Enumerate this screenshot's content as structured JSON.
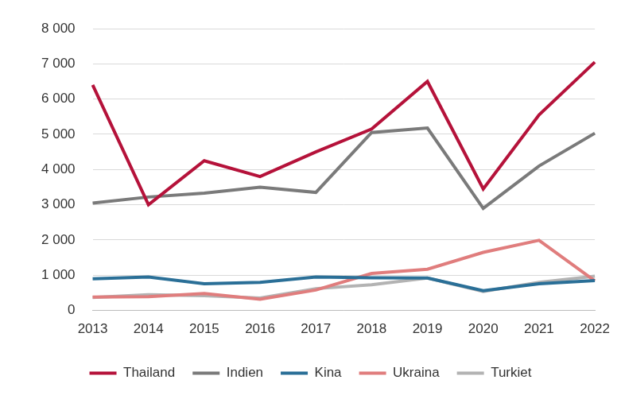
{
  "chart_data": {
    "type": "line",
    "categories": [
      "2013",
      "2014",
      "2015",
      "2016",
      "2017",
      "2018",
      "2019",
      "2020",
      "2021",
      "2022"
    ],
    "series": [
      {
        "name": "Thailand",
        "color": "#b5123a",
        "values": [
          6400,
          3000,
          4250,
          3800,
          4500,
          5150,
          6500,
          3450,
          5550,
          7050
        ]
      },
      {
        "name": "Indien",
        "color": "#7a7a7a",
        "values": [
          3050,
          3220,
          3330,
          3500,
          3350,
          5050,
          5180,
          2900,
          4100,
          5030
        ]
      },
      {
        "name": "Kina",
        "color": "#2a6f97",
        "values": [
          900,
          950,
          760,
          800,
          950,
          930,
          920,
          560,
          760,
          850
        ]
      },
      {
        "name": "Ukraina",
        "color": "#e07d7d",
        "values": [
          380,
          390,
          480,
          320,
          580,
          1050,
          1170,
          1650,
          1990,
          840
        ]
      },
      {
        "name": "Turkiet",
        "color": "#b3b3b3",
        "values": [
          370,
          450,
          420,
          350,
          620,
          730,
          920,
          540,
          800,
          970
        ]
      }
    ],
    "ylim": [
      0,
      8000
    ],
    "yticks": [
      0,
      {
        "value": 1000,
        "label": "1 000"
      },
      {
        "value": 2000,
        "label": "2 000"
      },
      {
        "value": 3000,
        "label": "3 000"
      },
      {
        "value": 4000,
        "label": "4 000"
      },
      {
        "value": 5000,
        "label": "5 000"
      },
      {
        "value": 6000,
        "label": "6 000"
      },
      {
        "value": 7000,
        "label": "7 000"
      },
      {
        "value": 8000,
        "label": "8 000"
      }
    ],
    "grid": true,
    "legend": "bottom"
  }
}
